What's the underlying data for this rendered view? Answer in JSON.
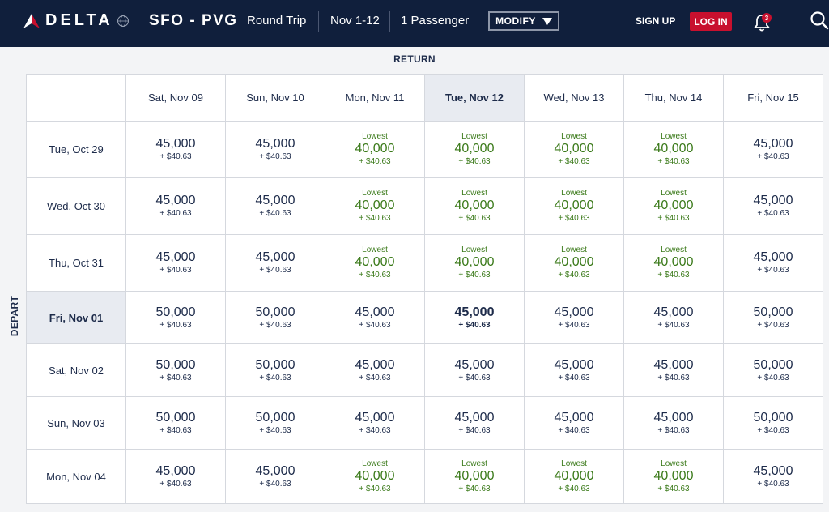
{
  "header": {
    "logo_text": "DELTA",
    "route": "SFO - PVG",
    "trip_type": "Round Trip",
    "dates": "Nov 1-12",
    "passengers": "1 Passenger",
    "modify_label": "MODIFY",
    "signup_label": "SIGN UP",
    "login_label": "LOG IN",
    "notification_count": "3",
    "colors": {
      "bar": "#101f3c",
      "login": "#c8102e"
    }
  },
  "grid": {
    "return_label": "RETURN",
    "depart_label": "DEPART",
    "lowest_label": "Lowest",
    "return_dates": [
      "Sat, Nov 09",
      "Sun, Nov 10",
      "Mon, Nov 11",
      "Tue, Nov 12",
      "Wed, Nov 13",
      "Thu, Nov 14",
      "Fri, Nov 15"
    ],
    "selected_return_index": 3,
    "selected_depart_index": 3,
    "rows": [
      {
        "depart": "Tue, Oct 29",
        "cells": [
          {
            "miles": "45,000",
            "fee": "+ $40.63",
            "lowest": false
          },
          {
            "miles": "45,000",
            "fee": "+ $40.63",
            "lowest": false
          },
          {
            "miles": "40,000",
            "fee": "+ $40.63",
            "lowest": true
          },
          {
            "miles": "40,000",
            "fee": "+ $40.63",
            "lowest": true
          },
          {
            "miles": "40,000",
            "fee": "+ $40.63",
            "lowest": true
          },
          {
            "miles": "40,000",
            "fee": "+ $40.63",
            "lowest": true
          },
          {
            "miles": "45,000",
            "fee": "+ $40.63",
            "lowest": false
          }
        ]
      },
      {
        "depart": "Wed, Oct 30",
        "cells": [
          {
            "miles": "45,000",
            "fee": "+ $40.63",
            "lowest": false
          },
          {
            "miles": "45,000",
            "fee": "+ $40.63",
            "lowest": false
          },
          {
            "miles": "40,000",
            "fee": "+ $40.63",
            "lowest": true
          },
          {
            "miles": "40,000",
            "fee": "+ $40.63",
            "lowest": true
          },
          {
            "miles": "40,000",
            "fee": "+ $40.63",
            "lowest": true
          },
          {
            "miles": "40,000",
            "fee": "+ $40.63",
            "lowest": true
          },
          {
            "miles": "45,000",
            "fee": "+ $40.63",
            "lowest": false
          }
        ]
      },
      {
        "depart": "Thu, Oct 31",
        "cells": [
          {
            "miles": "45,000",
            "fee": "+ $40.63",
            "lowest": false
          },
          {
            "miles": "45,000",
            "fee": "+ $40.63",
            "lowest": false
          },
          {
            "miles": "40,000",
            "fee": "+ $40.63",
            "lowest": true
          },
          {
            "miles": "40,000",
            "fee": "+ $40.63",
            "lowest": true
          },
          {
            "miles": "40,000",
            "fee": "+ $40.63",
            "lowest": true
          },
          {
            "miles": "40,000",
            "fee": "+ $40.63",
            "lowest": true
          },
          {
            "miles": "45,000",
            "fee": "+ $40.63",
            "lowest": false
          }
        ]
      },
      {
        "depart": "Fri, Nov 01",
        "cells": [
          {
            "miles": "50,000",
            "fee": "+ $40.63",
            "lowest": false
          },
          {
            "miles": "50,000",
            "fee": "+ $40.63",
            "lowest": false
          },
          {
            "miles": "45,000",
            "fee": "+ $40.63",
            "lowest": false
          },
          {
            "miles": "45,000",
            "fee": "+ $40.63",
            "lowest": false
          },
          {
            "miles": "45,000",
            "fee": "+ $40.63",
            "lowest": false
          },
          {
            "miles": "45,000",
            "fee": "+ $40.63",
            "lowest": false
          },
          {
            "miles": "50,000",
            "fee": "+ $40.63",
            "lowest": false
          }
        ]
      },
      {
        "depart": "Sat, Nov 02",
        "cells": [
          {
            "miles": "50,000",
            "fee": "+ $40.63",
            "lowest": false
          },
          {
            "miles": "50,000",
            "fee": "+ $40.63",
            "lowest": false
          },
          {
            "miles": "45,000",
            "fee": "+ $40.63",
            "lowest": false
          },
          {
            "miles": "45,000",
            "fee": "+ $40.63",
            "lowest": false
          },
          {
            "miles": "45,000",
            "fee": "+ $40.63",
            "lowest": false
          },
          {
            "miles": "45,000",
            "fee": "+ $40.63",
            "lowest": false
          },
          {
            "miles": "50,000",
            "fee": "+ $40.63",
            "lowest": false
          }
        ]
      },
      {
        "depart": "Sun, Nov 03",
        "cells": [
          {
            "miles": "50,000",
            "fee": "+ $40.63",
            "lowest": false
          },
          {
            "miles": "50,000",
            "fee": "+ $40.63",
            "lowest": false
          },
          {
            "miles": "45,000",
            "fee": "+ $40.63",
            "lowest": false
          },
          {
            "miles": "45,000",
            "fee": "+ $40.63",
            "lowest": false
          },
          {
            "miles": "45,000",
            "fee": "+ $40.63",
            "lowest": false
          },
          {
            "miles": "45,000",
            "fee": "+ $40.63",
            "lowest": false
          },
          {
            "miles": "50,000",
            "fee": "+ $40.63",
            "lowest": false
          }
        ]
      },
      {
        "depart": "Mon, Nov 04",
        "cells": [
          {
            "miles": "45,000",
            "fee": "+ $40.63",
            "lowest": false
          },
          {
            "miles": "45,000",
            "fee": "+ $40.63",
            "lowest": false
          },
          {
            "miles": "40,000",
            "fee": "+ $40.63",
            "lowest": true
          },
          {
            "miles": "40,000",
            "fee": "+ $40.63",
            "lowest": true
          },
          {
            "miles": "40,000",
            "fee": "+ $40.63",
            "lowest": true
          },
          {
            "miles": "40,000",
            "fee": "+ $40.63",
            "lowest": true
          },
          {
            "miles": "45,000",
            "fee": "+ $40.63",
            "lowest": false
          }
        ]
      }
    ]
  }
}
